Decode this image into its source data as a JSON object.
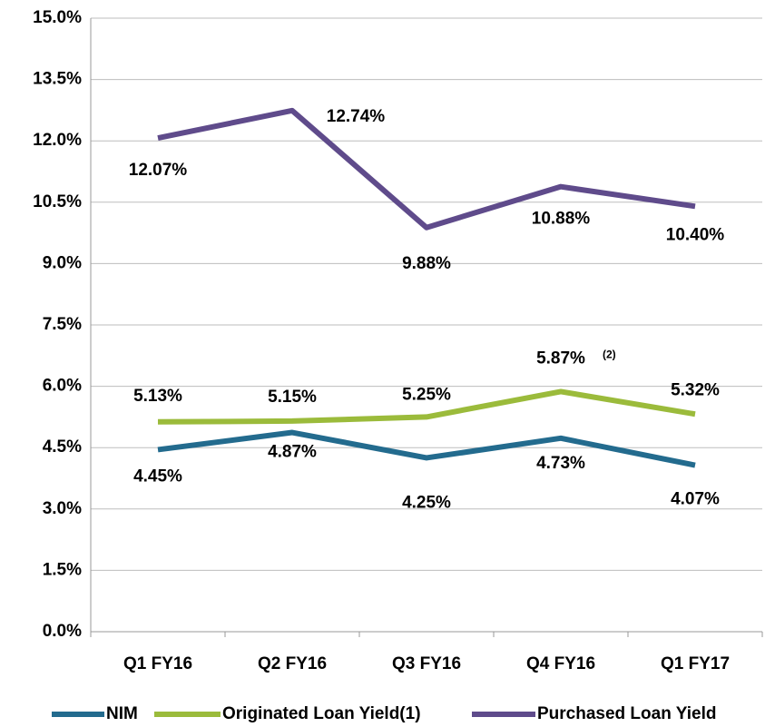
{
  "chart_data": {
    "type": "line",
    "categories": [
      "Q1 FY16",
      "Q2 FY16",
      "Q3 FY16",
      "Q4 FY16",
      "Q1 FY17"
    ],
    "series": [
      {
        "name": "NIM",
        "color": "#236b8e",
        "label_color": "#3b6a9a",
        "values": [
          4.45,
          4.87,
          4.25,
          4.73,
          4.07
        ],
        "value_labels": [
          "4.45%",
          "4.87%",
          "4.25%",
          "4.73%",
          "4.07%"
        ]
      },
      {
        "name": "Originated Loan Yield(1)",
        "color": "#9bbb3b",
        "label_color": "#9bbb3b",
        "values": [
          5.13,
          5.15,
          5.25,
          5.87,
          5.32
        ],
        "value_labels": [
          "5.13%",
          "5.15%",
          "5.25%",
          "5.87%",
          "5.32%"
        ]
      },
      {
        "name": "Purchased Loan Yield",
        "color": "#5f4b8b",
        "label_color": "#5b2d5e",
        "values": [
          12.07,
          12.74,
          9.88,
          10.88,
          10.4
        ],
        "value_labels": [
          "12.07%",
          "12.74%",
          "9.88%",
          "10.88%",
          "10.40%"
        ]
      }
    ],
    "annotation": "(2)",
    "ylim": [
      0,
      15
    ],
    "yticks": [
      {
        "value": 0,
        "label": "0.0%"
      },
      {
        "value": 1.5,
        "label": "1.5%"
      },
      {
        "value": 3,
        "label": "3.0%"
      },
      {
        "value": 4.5,
        "label": "4.5%"
      },
      {
        "value": 6,
        "label": "6.0%"
      },
      {
        "value": 7.5,
        "label": "7.5%"
      },
      {
        "value": 9,
        "label": "9.0%"
      },
      {
        "value": 10.5,
        "label": "10.5%"
      },
      {
        "value": 12,
        "label": "12.0%"
      },
      {
        "value": 13.5,
        "label": "13.5%"
      },
      {
        "value": 15,
        "label": "15.0%"
      }
    ],
    "grid": true
  }
}
